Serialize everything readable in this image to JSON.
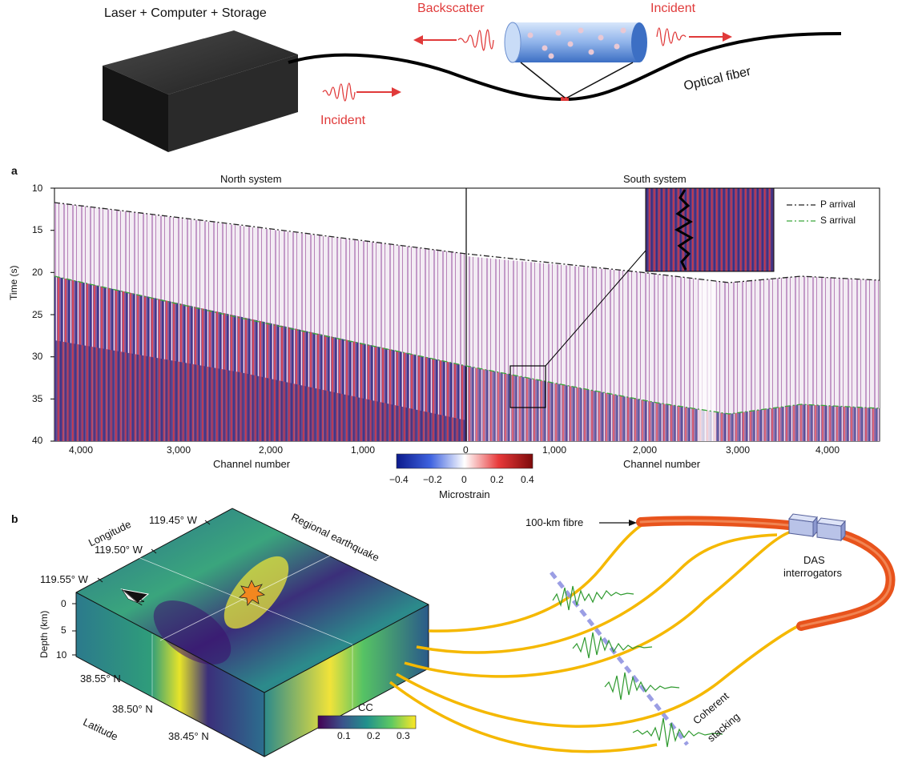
{
  "schematic": {
    "box_label": "Laser + Computer + Storage",
    "backscatter": "Backscatter",
    "incident_right": "Incident",
    "incident_left": "Incident",
    "fiber_label": "Optical fiber"
  },
  "panel_a": {
    "letter": "a",
    "north_title": "North system",
    "south_title": "South system",
    "ylabel": "Time (s)",
    "yticks": [
      "10",
      "15",
      "20",
      "25",
      "30",
      "35",
      "40"
    ],
    "north_xticks": [
      "4,000",
      "3,000",
      "2,000",
      "1,000",
      "0"
    ],
    "south_xticks": [
      "1,000",
      "2,000",
      "3,000",
      "4,000"
    ],
    "north_xlabel": "Channel number",
    "south_xlabel": "Channel number",
    "legend_p": "P arrival",
    "legend_s": "S arrival",
    "colorbar_ticks": [
      "−0.4",
      "−0.2",
      "0",
      "0.2",
      "0.4"
    ],
    "colorbar_label": "Microstrain"
  },
  "panel_b": {
    "letter": "b",
    "longitude_label": "Longitude",
    "lon_ticks": [
      "119.45° W",
      "119.50° W",
      "119.55° W"
    ],
    "depth_label": "Depth (km)",
    "depth_ticks": [
      "0",
      "5",
      "10"
    ],
    "lat_ticks": [
      "38.55° N",
      "38.50° N",
      "38.45° N"
    ],
    "latitude_label": "Latitude",
    "north_arrow": "N",
    "regional_label": "Regional earthquake",
    "cc_label": "CC",
    "cc_ticks": [
      "0.1",
      "0.2",
      "0.3"
    ],
    "fibre_label": "100-km fibre",
    "das_label_1": "DAS",
    "das_label_2": "interrogators",
    "stacking_1": "Coherent",
    "stacking_2": "stacking"
  },
  "colors": {
    "accent_red": "#e03a3a",
    "s_arrival_green": "#3aa63a",
    "fibre_yellow": "#f5b800",
    "fibre_orange": "#e8531c",
    "waveform_green": "#2f9a2f"
  }
}
